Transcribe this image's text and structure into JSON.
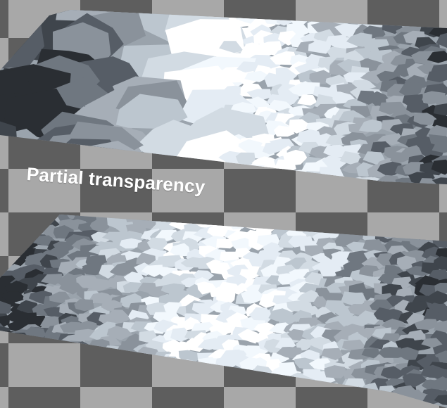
{
  "caption": "Partial transparency",
  "colors": {
    "checker_dark": "#5e5e5e",
    "checker_light": "#a8a8a8",
    "caption": "#ffffff",
    "cell_palette": [
      "#2a2e33",
      "#3f454c",
      "#565d66",
      "#6f7780",
      "#8a929b",
      "#a6aeb7",
      "#bcc6cf",
      "#d2dbe3",
      "#e4ecf4",
      "#f2f8fd",
      "#ffffff"
    ]
  },
  "panels": [
    {
      "name": "upper-voronoi-panel",
      "transparency": "partial"
    },
    {
      "name": "lower-voronoi-panel",
      "transparency": "none"
    }
  ]
}
